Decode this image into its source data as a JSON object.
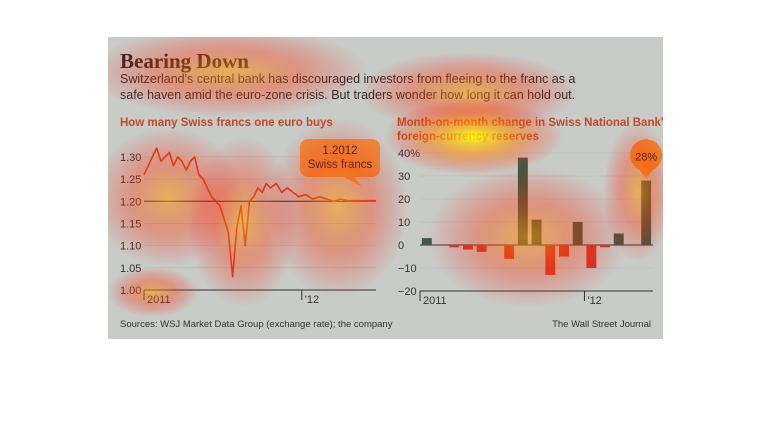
{
  "header": {
    "title": "Bearing Down",
    "subtitle_line1": "Switzerland's central bank has discouraged investors from fleeing to the franc as a",
    "subtitle_line2": "safe haven amid the euro-zone crisis. But traders wonder how long it can hold out."
  },
  "footer": {
    "sources": "Sources: WSJ Market Data Group (exchange rate); the company",
    "credit": "The Wall Street Journal"
  },
  "colors": {
    "line": "#d4401f",
    "pos_bar": "#3f5a45",
    "neg_bar": "#d2382a",
    "callout": "#ec8b2e",
    "background": "#c9cbc7"
  },
  "chart_data": [
    {
      "type": "line",
      "title": "How many Swiss francs one euro buys",
      "y_ticks": [
        "1.30",
        "1.25",
        "1.20",
        "1.15",
        "1.10",
        "1.05",
        "1.00"
      ],
      "x_ticks": [
        "2011",
        "'12"
      ],
      "ylim": [
        1.0,
        1.32
      ],
      "reference_line": 1.2,
      "annotation": {
        "value": "1.2012",
        "unit": "Swiss francs"
      },
      "x": [
        0,
        0.3,
        0.6,
        0.9,
        1.2,
        1.5,
        1.8,
        2.1,
        2.4,
        2.7,
        3.0,
        3.3,
        3.6,
        3.9,
        4.2,
        4.5,
        4.8,
        5.1,
        5.4,
        5.7,
        6.0,
        6.3,
        6.6,
        6.9,
        7.2,
        7.5,
        7.8,
        8.1,
        8.4,
        8.7,
        9.0,
        9.4,
        9.8,
        10.2,
        10.6,
        11.0,
        11.5,
        12.0,
        12.5,
        13.0,
        13.5,
        14.0,
        14.5,
        15.0,
        15.5,
        16.0,
        16.5
      ],
      "values": [
        1.26,
        1.28,
        1.3,
        1.32,
        1.29,
        1.3,
        1.31,
        1.28,
        1.3,
        1.29,
        1.27,
        1.29,
        1.3,
        1.26,
        1.25,
        1.23,
        1.21,
        1.2,
        1.19,
        1.16,
        1.13,
        1.03,
        1.14,
        1.19,
        1.1,
        1.2,
        1.21,
        1.23,
        1.22,
        1.24,
        1.23,
        1.24,
        1.22,
        1.23,
        1.22,
        1.21,
        1.215,
        1.205,
        1.21,
        1.205,
        1.2,
        1.205,
        1.201,
        1.2012,
        1.201,
        1.2012,
        1.2012
      ]
    },
    {
      "type": "bar",
      "title": "Month-on-month change in Swiss National Bank's foreign-currency reserves",
      "title_line1": "Month-on-month change in Swiss National Bank's",
      "title_line2": "foreign-currency reserves",
      "y_ticks": [
        "40%",
        "30",
        "20",
        "10",
        "0",
        "−10",
        "−20"
      ],
      "x_ticks": [
        "2011",
        "'12"
      ],
      "ylim": [
        -20,
        40
      ],
      "callout": "28%",
      "values": [
        3,
        0,
        -1,
        -2,
        -3,
        0,
        -6,
        38,
        11,
        -13,
        -5,
        10,
        -10,
        -1,
        5,
        0,
        28
      ]
    }
  ]
}
